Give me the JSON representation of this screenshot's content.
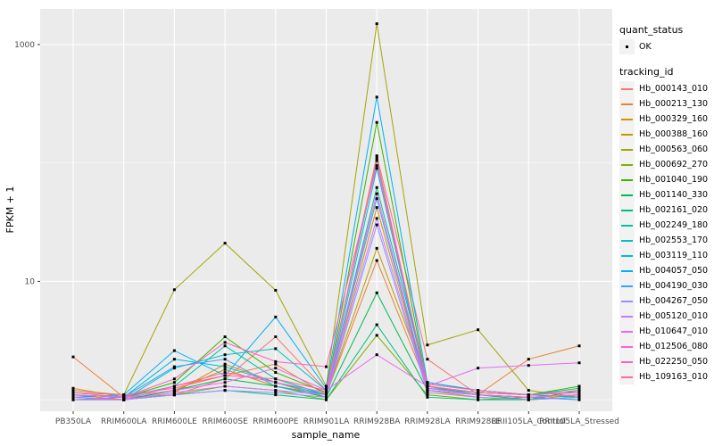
{
  "axes": {
    "y_title": "FPKM + 1",
    "x_title": "sample_name",
    "y_ticks": [
      {
        "label": "1000",
        "value": 1000
      },
      {
        "label": "10",
        "value": 10
      }
    ]
  },
  "legend": {
    "quant_status_title": "quant_status",
    "quant_status_items": [
      {
        "label": "OK"
      }
    ],
    "tracking_id_title": "tracking_id"
  },
  "chart_data": {
    "type": "line",
    "title": "",
    "xlabel": "sample_name",
    "ylabel": "FPKM + 1",
    "y_scale": "log10",
    "ylim": [
      0.8,
      2000
    ],
    "y_breaks": [
      10,
      1000
    ],
    "y_minor_breaks": [
      1,
      100
    ],
    "grid": true,
    "legend_position": "right",
    "panel_bg": "#EBEBEB",
    "grid_color": "#FFFFFF",
    "point_color": "#000000",
    "tick_label_color": "#4D4D4D",
    "x": [
      "PB350LA",
      "RRIM600LA",
      "RRIM600LE",
      "RRIM600SE",
      "RRIM600PE",
      "RRIM901LA",
      "RRIM928BA",
      "RRIM928LA",
      "RRIM928LE",
      "RRII105LA_Control",
      "RRII105LA_Stressed"
    ],
    "series": [
      {
        "name": "Hb_000143_010",
        "color": "#F8766D",
        "values": [
          1.25,
          1.05,
          1.1,
          1.5,
          3.4,
          1.2,
          115,
          2.2,
          1.1,
          1.05,
          1.1
        ]
      },
      {
        "name": "Hb_000213_130",
        "color": "#EA8331",
        "values": [
          2.3,
          1.05,
          1.3,
          1.6,
          2.0,
          1.1,
          15,
          1.3,
          1.1,
          2.2,
          2.85
        ]
      },
      {
        "name": "Hb_000329_160",
        "color": "#D89000",
        "values": [
          1.1,
          1.0,
          1.15,
          2.0,
          1.4,
          1.05,
          42,
          1.2,
          1.05,
          1.0,
          1.1
        ]
      },
      {
        "name": "Hb_000388_160",
        "color": "#C09B00",
        "values": [
          1.05,
          1.0,
          1.2,
          1.8,
          1.3,
          1.1,
          19,
          1.4,
          1.2,
          1.1,
          1.05
        ]
      },
      {
        "name": "Hb_000563_060",
        "color": "#A3A500",
        "values": [
          1.2,
          1.1,
          8.5,
          21.0,
          8.4,
          1.3,
          1500,
          2.9,
          3.9,
          1.2,
          1.05
        ]
      },
      {
        "name": "Hb_000692_270",
        "color": "#7CAE00",
        "values": [
          1.05,
          1.0,
          1.1,
          1.3,
          1.2,
          1.0,
          3.5,
          1.1,
          1.0,
          1.05,
          1.0
        ]
      },
      {
        "name": "Hb_001040_190",
        "color": "#39B600",
        "values": [
          1.1,
          1.05,
          1.4,
          3.4,
          1.7,
          1.15,
          220,
          1.3,
          1.15,
          1.1,
          1.3
        ]
      },
      {
        "name": "Hb_001140_330",
        "color": "#00BB4E",
        "values": [
          1.0,
          1.0,
          1.2,
          1.5,
          1.3,
          1.05,
          8.0,
          1.2,
          1.1,
          1.0,
          1.2
        ]
      },
      {
        "name": "Hb_002161_020",
        "color": "#00BF7D",
        "values": [
          1.05,
          1.0,
          1.1,
          1.2,
          1.1,
          1.0,
          4.3,
          1.05,
          1.0,
          1.0,
          1.05
        ]
      },
      {
        "name": "Hb_002249_180",
        "color": "#00C1A3",
        "values": [
          1.1,
          1.05,
          1.3,
          2.85,
          1.5,
          1.1,
          62,
          1.4,
          1.2,
          1.1,
          1.25
        ]
      },
      {
        "name": "Hb_002553_170",
        "color": "#00BFC4",
        "values": [
          1.05,
          1.0,
          1.85,
          2.4,
          2.7,
          1.2,
          105,
          1.3,
          1.1,
          1.05,
          1.1
        ]
      },
      {
        "name": "Hb_003119_110",
        "color": "#00BAE0",
        "values": [
          1.1,
          1.05,
          2.2,
          1.9,
          1.4,
          1.1,
          90,
          1.25,
          1.15,
          1.1,
          1.05
        ]
      },
      {
        "name": "Hb_004057_050",
        "color": "#00B0F6",
        "values": [
          1.05,
          1.1,
          2.6,
          1.6,
          5.0,
          1.25,
          360,
          1.4,
          1.2,
          1.1,
          1.15
        ]
      },
      {
        "name": "Hb_004190_030",
        "color": "#35A2FF",
        "values": [
          1.0,
          1.05,
          1.9,
          2.2,
          1.3,
          1.1,
          50,
          1.2,
          1.1,
          1.05,
          1.0
        ]
      },
      {
        "name": "Hb_004267_050",
        "color": "#9590FF",
        "values": [
          1.05,
          1.0,
          1.1,
          1.2,
          1.15,
          1.05,
          30,
          1.15,
          1.05,
          1.0,
          1.05
        ]
      },
      {
        "name": "Hb_005120_010",
        "color": "#C77CFF",
        "values": [
          1.0,
          1.0,
          1.15,
          1.3,
          1.2,
          1.1,
          34,
          1.2,
          1.1,
          1.05,
          1.1
        ]
      },
      {
        "name": "Hb_010647_010",
        "color": "#E76BF3",
        "values": [
          1.1,
          1.05,
          1.2,
          1.4,
          1.85,
          1.2,
          2.4,
          1.3,
          1.85,
          1.95,
          2.05
        ]
      },
      {
        "name": "Hb_012506_080",
        "color": "#FA62DB",
        "values": [
          1.05,
          1.0,
          1.3,
          1.7,
          1.4,
          1.15,
          55,
          1.25,
          1.1,
          1.05,
          1.1
        ]
      },
      {
        "name": "Hb_022250_050",
        "color": "#FF62BC",
        "values": [
          1.15,
          1.05,
          1.5,
          3.05,
          2.1,
          1.9,
          95,
          1.35,
          1.2,
          1.1,
          1.15
        ]
      },
      {
        "name": "Hb_109163_010",
        "color": "#FF6A98",
        "values": [
          1.15,
          1.1,
          1.25,
          1.6,
          1.5,
          1.2,
          110,
          1.3,
          1.15,
          1.1,
          1.2
        ]
      }
    ]
  }
}
